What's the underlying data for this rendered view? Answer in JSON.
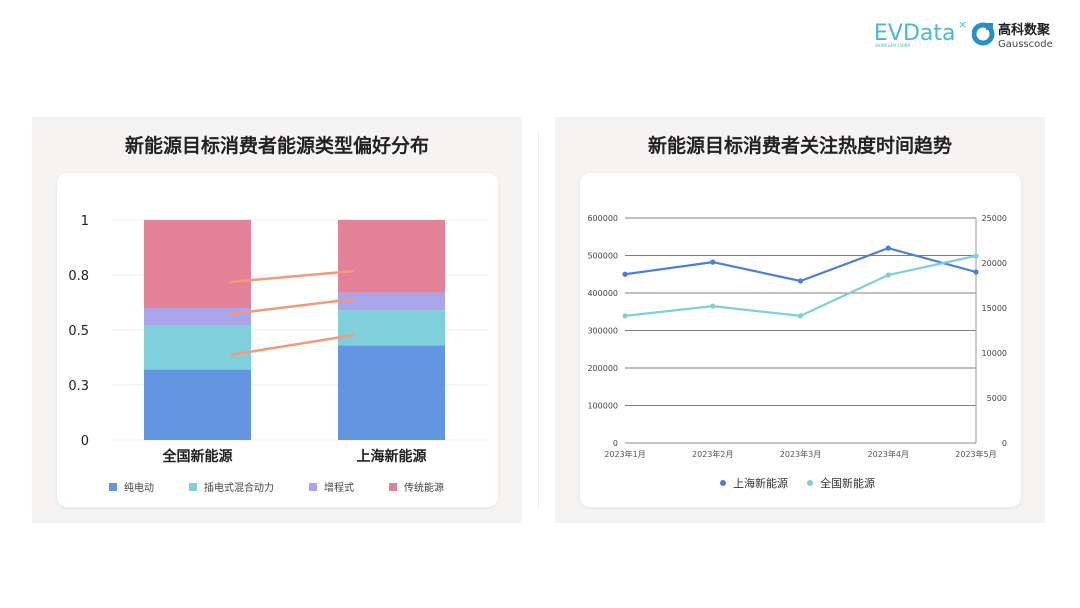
{
  "logos": {
    "evdata": "EVData",
    "evdata_sub": "SHANGHAI CHINA",
    "gauss_cn": "高科数聚",
    "gauss_en": "Gausscode"
  },
  "colors": {
    "bev": "#6495e0",
    "phev": "#80d0dc",
    "erev": "#aaa5ea",
    "ice": "#e28198",
    "shanghai": "#4a7fdc",
    "national": "#7fcfd9",
    "annotation": "#f29a7c"
  },
  "chart_data": [
    {
      "type": "bar",
      "stacked": true,
      "title": "新能源目标消费者能源类型偏好分布",
      "categories": [
        "全国新能源",
        "上海新能源"
      ],
      "ylim": [
        0,
        1
      ],
      "yticks": [
        0,
        0.25,
        0.5,
        0.75,
        1
      ],
      "ytick_labels": [
        "0",
        "0.3",
        "0.5",
        "0.8",
        "1"
      ],
      "grid": true,
      "legend": "bottom",
      "series": [
        {
          "name": "纯电动",
          "values": [
            0.32,
            0.43
          ]
        },
        {
          "name": "插电式混合动力",
          "values": [
            0.2,
            0.16
          ]
        },
        {
          "name": "增程式",
          "values": [
            0.08,
            0.08
          ]
        },
        {
          "name": "传统能源",
          "values": [
            0.4,
            0.33
          ]
        }
      ]
    },
    {
      "type": "line",
      "title": "新能源目标消费者关注热度时间趋势",
      "x": [
        "2023年1月",
        "2023年2月",
        "2023年3月",
        "2023年4月",
        "2023年5月"
      ],
      "ylim_left": [
        0,
        600000
      ],
      "yticks_left": [
        "0",
        "100000",
        "200000",
        "300000",
        "400000",
        "500000",
        "600000"
      ],
      "ylim_right": [
        0,
        25000
      ],
      "yticks_right": [
        "0",
        "5000",
        "10000",
        "15000",
        "20000",
        "25000"
      ],
      "grid": true,
      "legend": "bottom",
      "series": [
        {
          "name": "上海新能源",
          "axis": "right",
          "values": [
            18750,
            20100,
            18000,
            21650,
            19000
          ]
        },
        {
          "name": "全国新能源",
          "axis": "left",
          "values": [
            339000,
            365000,
            339000,
            448000,
            499000
          ]
        }
      ]
    }
  ]
}
